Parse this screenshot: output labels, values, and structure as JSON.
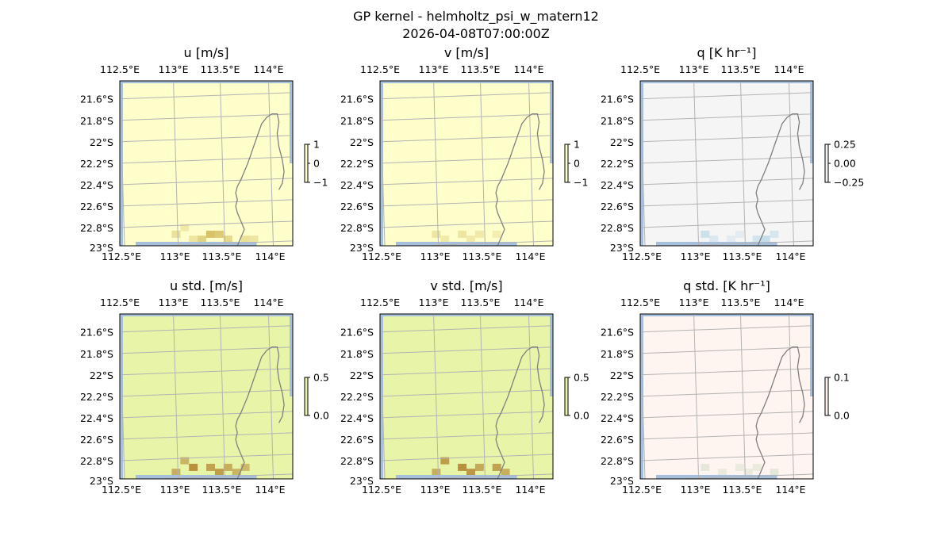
{
  "figure": {
    "title": "GP kernel - helmholtz_psi_w_matern12",
    "subtitle": "2026-04-08T07:00:00Z"
  },
  "chart_data": [
    {
      "type": "heatmap",
      "title": "u [m/s]",
      "lon_ticks": [
        "112.5°E",
        "113°E",
        "113.5°E",
        "114°E"
      ],
      "lat_ticks": [
        "21.6°S",
        "21.8°S",
        "22°S",
        "22.2°S",
        "22.4°S",
        "22.6°S",
        "22.8°S",
        "23°S"
      ],
      "lon_range": [
        112.5,
        114.2
      ],
      "lat_range": [
        -23.0,
        -21.5
      ],
      "colorbar": {
        "ticks": [
          "1",
          "0",
          "−1"
        ],
        "range": [
          -1,
          1
        ]
      },
      "background_color": "#ffffcc",
      "data_color": "#c8a93a",
      "highlights": [
        [
          0.3,
          0.93,
          0.35
        ],
        [
          0.35,
          0.89,
          0.25
        ],
        [
          0.45,
          0.96,
          0.5
        ],
        [
          0.5,
          0.93,
          0.7
        ],
        [
          0.55,
          0.93,
          0.6
        ],
        [
          0.6,
          0.96,
          0.45
        ],
        [
          0.4,
          0.96,
          0.3
        ],
        [
          0.7,
          0.96,
          0.35
        ],
        [
          0.75,
          0.96,
          0.3
        ]
      ]
    },
    {
      "type": "heatmap",
      "title": "v [m/s]",
      "lon_ticks": [
        "112.5°E",
        "113°E",
        "113.5°E",
        "114°E"
      ],
      "lat_ticks": [
        "21.6°S",
        "21.8°S",
        "22°S",
        "22.2°S",
        "22.4°S",
        "22.6°S",
        "22.8°S",
        "23°S"
      ],
      "lon_range": [
        112.5,
        114.2
      ],
      "lat_range": [
        -23.0,
        -21.5
      ],
      "colorbar": {
        "ticks": [
          "1",
          "0",
          "−1"
        ],
        "range": [
          -1,
          1
        ]
      },
      "background_color": "#ffffcc",
      "data_color": "#c8a93a",
      "highlights": [
        [
          0.3,
          0.93,
          0.3
        ],
        [
          0.35,
          0.96,
          0.25
        ],
        [
          0.45,
          0.93,
          0.3
        ],
        [
          0.5,
          0.96,
          0.25
        ],
        [
          0.55,
          0.93,
          0.25
        ],
        [
          0.65,
          0.93,
          0.2
        ]
      ]
    },
    {
      "type": "heatmap",
      "title": "q [K hr⁻¹]",
      "lon_ticks": [
        "112.5°E",
        "113°E",
        "113.5°E",
        "114°E"
      ],
      "lat_ticks": [
        "21.6°S",
        "21.8°S",
        "22°S",
        "22.2°S",
        "22.4°S",
        "22.6°S",
        "22.8°S",
        "23°S"
      ],
      "lon_range": [
        112.5,
        114.2
      ],
      "lat_range": [
        -23.0,
        -21.5
      ],
      "colorbar": {
        "ticks": [
          "0.25",
          "0.00",
          "−0.25"
        ],
        "range": [
          -0.35,
          0.35
        ]
      },
      "background_color": "#f5f5f5",
      "data_color": "#9ecae1",
      "highlights": [
        [
          0.35,
          0.93,
          0.45
        ],
        [
          0.4,
          0.96,
          0.3
        ],
        [
          0.5,
          0.96,
          0.2
        ],
        [
          0.55,
          0.93,
          0.2
        ],
        [
          0.65,
          0.96,
          0.4
        ],
        [
          0.7,
          0.96,
          0.55
        ],
        [
          0.75,
          0.93,
          0.35
        ]
      ]
    },
    {
      "type": "heatmap",
      "title": "u std. [m/s]",
      "lon_ticks": [
        "112.5°E",
        "113°E",
        "113.5°E",
        "114°E"
      ],
      "lat_ticks": [
        "21.6°S",
        "21.8°S",
        "22°S",
        "22.2°S",
        "22.4°S",
        "22.6°S",
        "22.8°S",
        "23°S"
      ],
      "lon_range": [
        112.5,
        114.2
      ],
      "lat_range": [
        -23.0,
        -21.5
      ],
      "colorbar": {
        "ticks": [
          "0.5",
          "0.0"
        ],
        "range": [
          0,
          0.5
        ]
      },
      "background_color": "#e8f5a8",
      "data_color": "#b07f2c",
      "highlights": [
        [
          0.3,
          0.96,
          0.6
        ],
        [
          0.35,
          0.89,
          0.55
        ],
        [
          0.4,
          0.93,
          0.85
        ],
        [
          0.5,
          0.93,
          0.7
        ],
        [
          0.55,
          0.96,
          0.75
        ],
        [
          0.6,
          0.93,
          0.6
        ],
        [
          0.65,
          0.96,
          0.55
        ],
        [
          0.7,
          0.93,
          0.5
        ]
      ]
    },
    {
      "type": "heatmap",
      "title": "v std. [m/s]",
      "lon_ticks": [
        "112.5°E",
        "113°E",
        "113.5°E",
        "114°E"
      ],
      "lat_ticks": [
        "21.6°S",
        "21.8°S",
        "22°S",
        "22.2°S",
        "22.4°S",
        "22.6°S",
        "22.8°S",
        "23°S"
      ],
      "lon_range": [
        112.5,
        114.2
      ],
      "lat_range": [
        -23.0,
        -21.5
      ],
      "colorbar": {
        "ticks": [
          "0.5",
          "0.0"
        ],
        "range": [
          0,
          0.5
        ]
      },
      "background_color": "#e8f5a8",
      "data_color": "#b07f2c",
      "highlights": [
        [
          0.3,
          0.96,
          0.6
        ],
        [
          0.35,
          0.89,
          0.75
        ],
        [
          0.45,
          0.93,
          0.85
        ],
        [
          0.5,
          0.96,
          0.8
        ],
        [
          0.55,
          0.93,
          0.65
        ],
        [
          0.65,
          0.93,
          0.7
        ],
        [
          0.7,
          0.96,
          0.6
        ]
      ]
    },
    {
      "type": "heatmap",
      "title": "q std. [K hr⁻¹]",
      "lon_ticks": [
        "112.5°E",
        "113°E",
        "113.5°E",
        "114°E"
      ],
      "lat_ticks": [
        "21.6°S",
        "21.8°S",
        "22°S",
        "22.2°S",
        "22.4°S",
        "22.6°S",
        "22.8°S",
        "23°S"
      ],
      "lon_range": [
        112.5,
        114.2
      ],
      "lat_range": [
        -23.0,
        -21.5
      ],
      "colorbar": {
        "ticks": [
          "0.1",
          "0.0"
        ],
        "range": [
          0,
          0.1
        ]
      },
      "background_color": "#fff5f0",
      "data_color": "#c7d6c0",
      "highlights": [
        [
          0.35,
          0.93,
          0.45
        ],
        [
          0.45,
          0.96,
          0.35
        ],
        [
          0.55,
          0.93,
          0.35
        ],
        [
          0.6,
          0.96,
          0.4
        ],
        [
          0.65,
          0.93,
          0.35
        ],
        [
          0.75,
          0.96,
          0.45
        ]
      ]
    }
  ]
}
